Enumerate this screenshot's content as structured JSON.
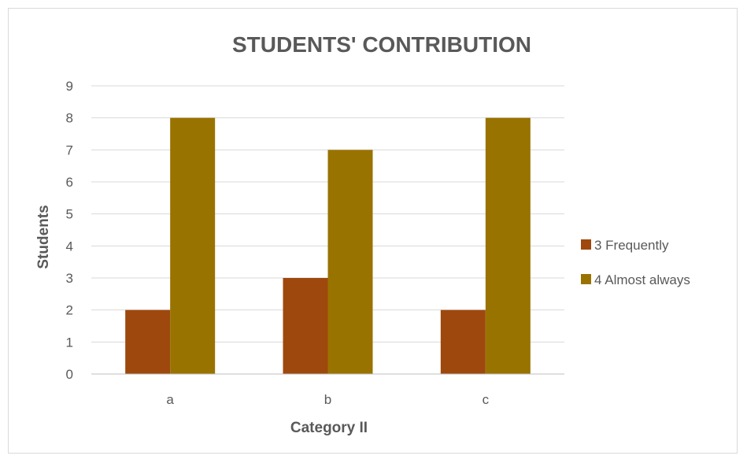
{
  "chart_data": {
    "type": "bar",
    "title": "STUDENTS' CONTRIBUTION",
    "xlabel": "Category II",
    "ylabel": "Students",
    "categories": [
      "a",
      "b",
      "c"
    ],
    "series": [
      {
        "name": "3 Frequently",
        "values": [
          2,
          3,
          2
        ],
        "color": "#9e480e"
      },
      {
        "name": "4 Almost always",
        "values": [
          8,
          7,
          8
        ],
        "color": "#997300"
      }
    ],
    "ylim": [
      0,
      9
    ],
    "yticks": [
      "0",
      "1",
      "2",
      "3",
      "4",
      "5",
      "6",
      "7",
      "8",
      "9"
    ],
    "grid": true,
    "legend_position": "right"
  }
}
